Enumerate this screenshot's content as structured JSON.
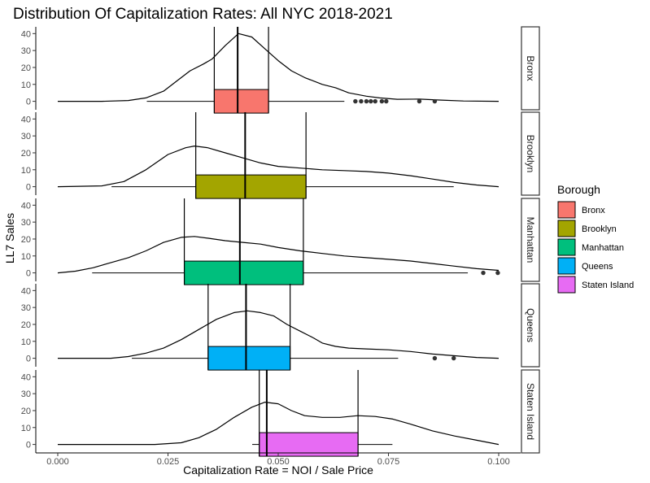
{
  "chart_data": {
    "type": "box-density",
    "title": "Distribution Of Capitalization Rates: All NYC 2018-2021",
    "xlabel": "Capitalization Rate = NOI / Sale Price",
    "ylabel": "LL7 Sales",
    "xlim": [
      0.0,
      0.1
    ],
    "x_ticks": [
      0.0,
      0.025,
      0.05,
      0.075,
      0.1
    ],
    "x_tick_labels": [
      "0.000",
      "0.025",
      "0.050",
      "0.075",
      "0.100"
    ],
    "ylim": [
      -5,
      44
    ],
    "y_ticks": [
      0,
      10,
      20,
      30,
      40
    ],
    "y_tick_labels": [
      "0",
      "10",
      "20",
      "30",
      "40"
    ],
    "grid": false,
    "legend": {
      "title": "Borough",
      "position": "right",
      "entries": [
        "Bronx",
        "Brooklyn",
        "Manhattan",
        "Queens",
        "Staten Island"
      ]
    },
    "series": [
      {
        "name": "Bronx",
        "color": "#F8766D",
        "box": {
          "whisker_low": 0.0202,
          "q1": 0.0355,
          "median": 0.0408,
          "q3": 0.0478,
          "whisker_high": 0.065
        },
        "outliers": [
          0.0675,
          0.0688,
          0.07,
          0.071,
          0.072,
          0.0735,
          0.0745,
          0.082,
          0.0855
        ],
        "density": [
          [
            0.0,
            0
          ],
          [
            0.01,
            0
          ],
          [
            0.016,
            0.5
          ],
          [
            0.02,
            2
          ],
          [
            0.024,
            6
          ],
          [
            0.027,
            12
          ],
          [
            0.03,
            18
          ],
          [
            0.033,
            22
          ],
          [
            0.035,
            25
          ],
          [
            0.038,
            33
          ],
          [
            0.041,
            40
          ],
          [
            0.044,
            38
          ],
          [
            0.047,
            31
          ],
          [
            0.05,
            24
          ],
          [
            0.053,
            18
          ],
          [
            0.056,
            14
          ],
          [
            0.06,
            10
          ],
          [
            0.063,
            8
          ],
          [
            0.066,
            5
          ],
          [
            0.07,
            3
          ],
          [
            0.073,
            2
          ],
          [
            0.077,
            1.2
          ],
          [
            0.082,
            1.3
          ],
          [
            0.087,
            0.7
          ],
          [
            0.092,
            0.2
          ],
          [
            0.1,
            0
          ]
        ]
      },
      {
        "name": "Brooklyn",
        "color": "#A3A500",
        "box": {
          "whisker_low": 0.0122,
          "q1": 0.0313,
          "median": 0.0425,
          "q3": 0.0563,
          "whisker_high": 0.0898
        },
        "outliers": [],
        "density": [
          [
            0.0,
            0
          ],
          [
            0.01,
            0.5
          ],
          [
            0.015,
            3
          ],
          [
            0.02,
            10
          ],
          [
            0.025,
            19
          ],
          [
            0.029,
            23
          ],
          [
            0.031,
            24
          ],
          [
            0.034,
            23
          ],
          [
            0.038,
            20
          ],
          [
            0.042,
            17
          ],
          [
            0.046,
            14
          ],
          [
            0.05,
            12
          ],
          [
            0.055,
            11
          ],
          [
            0.06,
            10
          ],
          [
            0.065,
            9.5
          ],
          [
            0.07,
            9
          ],
          [
            0.075,
            8
          ],
          [
            0.08,
            6.5
          ],
          [
            0.085,
            4.5
          ],
          [
            0.09,
            2.5
          ],
          [
            0.095,
            1
          ],
          [
            0.1,
            0
          ]
        ]
      },
      {
        "name": "Manhattan",
        "color": "#00BF7D",
        "box": {
          "whisker_low": 0.0078,
          "q1": 0.0287,
          "median": 0.0413,
          "q3": 0.0557,
          "whisker_high": 0.093
        },
        "outliers": [
          0.0965,
          0.0998
        ],
        "density": [
          [
            0.0,
            0
          ],
          [
            0.004,
            1
          ],
          [
            0.008,
            3
          ],
          [
            0.012,
            6
          ],
          [
            0.016,
            9
          ],
          [
            0.02,
            13
          ],
          [
            0.024,
            18
          ],
          [
            0.028,
            21
          ],
          [
            0.031,
            21.5
          ],
          [
            0.034,
            20.5
          ],
          [
            0.038,
            19
          ],
          [
            0.042,
            18
          ],
          [
            0.046,
            17
          ],
          [
            0.05,
            15
          ],
          [
            0.055,
            13
          ],
          [
            0.06,
            11.5
          ],
          [
            0.065,
            10
          ],
          [
            0.07,
            9
          ],
          [
            0.075,
            8
          ],
          [
            0.08,
            7
          ],
          [
            0.085,
            5.5
          ],
          [
            0.09,
            4
          ],
          [
            0.095,
            2.5
          ],
          [
            0.1,
            1.5
          ]
        ]
      },
      {
        "name": "Queens",
        "color": "#00B0F6",
        "box": {
          "whisker_low": 0.0168,
          "q1": 0.0341,
          "median": 0.0427,
          "q3": 0.0527,
          "whisker_high": 0.0772
        },
        "outliers": [
          0.0855,
          0.0898
        ],
        "density": [
          [
            0.0,
            0
          ],
          [
            0.012,
            0
          ],
          [
            0.016,
            1
          ],
          [
            0.02,
            3
          ],
          [
            0.024,
            6
          ],
          [
            0.028,
            11
          ],
          [
            0.032,
            17
          ],
          [
            0.036,
            23
          ],
          [
            0.04,
            27
          ],
          [
            0.043,
            28
          ],
          [
            0.046,
            27
          ],
          [
            0.049,
            25
          ],
          [
            0.052,
            20
          ],
          [
            0.055,
            16
          ],
          [
            0.058,
            12
          ],
          [
            0.06,
            9
          ],
          [
            0.063,
            7
          ],
          [
            0.066,
            6
          ],
          [
            0.07,
            5.5
          ],
          [
            0.075,
            5
          ],
          [
            0.08,
            4
          ],
          [
            0.085,
            2.5
          ],
          [
            0.09,
            1.5
          ],
          [
            0.095,
            0.5
          ],
          [
            0.1,
            0
          ]
        ]
      },
      {
        "name": "Staten Island",
        "color": "#E76BF3",
        "box": {
          "whisker_low": 0.0441,
          "q1": 0.0457,
          "median": 0.0474,
          "q3": 0.0681,
          "whisker_high": 0.0759
        },
        "outliers": [],
        "density": [
          [
            0.0,
            0
          ],
          [
            0.022,
            0
          ],
          [
            0.028,
            1
          ],
          [
            0.032,
            4
          ],
          [
            0.036,
            9
          ],
          [
            0.04,
            16
          ],
          [
            0.044,
            22
          ],
          [
            0.047,
            25
          ],
          [
            0.05,
            24
          ],
          [
            0.053,
            20
          ],
          [
            0.056,
            17
          ],
          [
            0.06,
            16
          ],
          [
            0.064,
            16
          ],
          [
            0.068,
            17
          ],
          [
            0.072,
            16.5
          ],
          [
            0.076,
            15
          ],
          [
            0.08,
            12
          ],
          [
            0.085,
            8
          ],
          [
            0.09,
            5
          ],
          [
            0.095,
            2.5
          ],
          [
            0.1,
            0
          ]
        ]
      }
    ]
  }
}
